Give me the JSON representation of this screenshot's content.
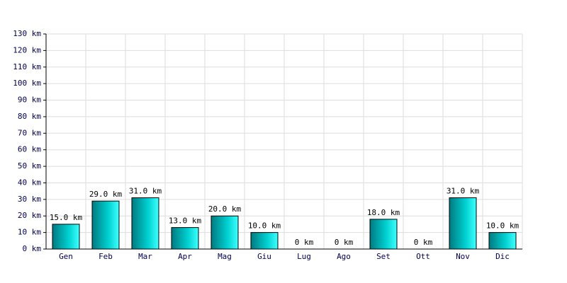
{
  "chart_data": {
    "type": "bar",
    "categories": [
      "Gen",
      "Feb",
      "Mar",
      "Apr",
      "Mag",
      "Giu",
      "Lug",
      "Ago",
      "Set",
      "Ott",
      "Nov",
      "Dic"
    ],
    "values": [
      15,
      29,
      31,
      13,
      20,
      10,
      0,
      0,
      18,
      0,
      31,
      10
    ],
    "value_labels": [
      "15.0 km",
      "29.0 km",
      "31.0 km",
      "13.0 km",
      "20.0 km",
      "10.0 km",
      "0 km",
      "0 km",
      "18.0 km",
      "0 km",
      "31.0 km",
      "10.0 km"
    ],
    "color": "#00d0d0",
    "ylim": [
      0,
      130
    ],
    "yticks": [
      {
        "value": 0,
        "label": "0 km"
      },
      {
        "value": 10,
        "label": "10 km"
      },
      {
        "value": 20,
        "label": "20 km"
      },
      {
        "value": 30,
        "label": "30 km"
      },
      {
        "value": 40,
        "label": "40 km"
      },
      {
        "value": 50,
        "label": "50 km"
      },
      {
        "value": 60,
        "label": "60 km"
      },
      {
        "value": 70,
        "label": "70 km"
      },
      {
        "value": 80,
        "label": "80 km"
      },
      {
        "value": 90,
        "label": "90 km"
      },
      {
        "value": 100,
        "label": "100 km"
      },
      {
        "value": 110,
        "label": "110 km"
      },
      {
        "value": 120,
        "label": "120 km"
      },
      {
        "value": 130,
        "label": "130 km"
      }
    ],
    "grid": true
  }
}
